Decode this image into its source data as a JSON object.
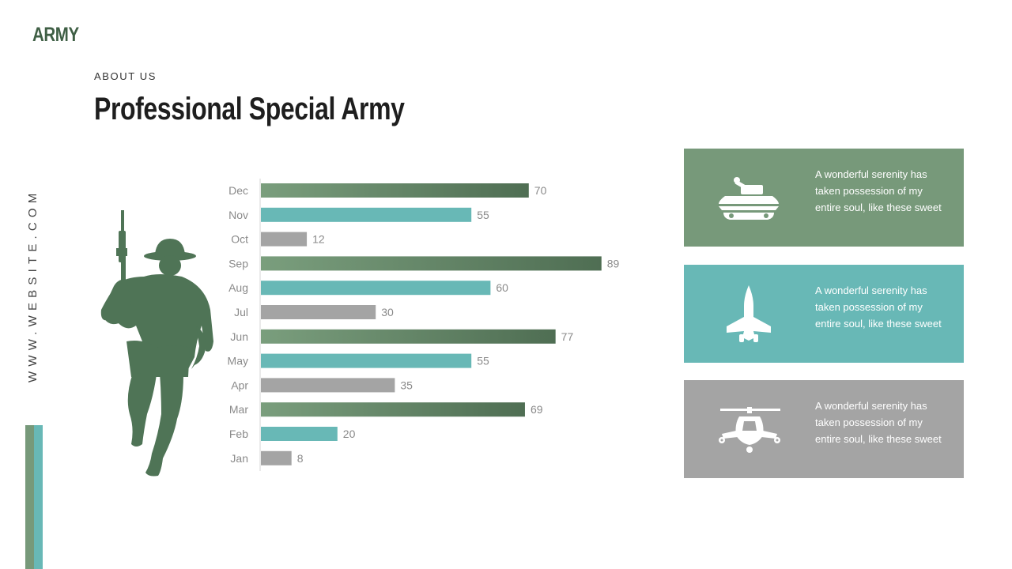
{
  "brand": "ARMY",
  "eyebrow": "ABOUT US",
  "title": "Professional Special Army",
  "vertical_text": "WWW.WEBSITE.COM",
  "colors": {
    "green": "#77997a",
    "green_dark": "#4f6e53",
    "teal": "#68b8b6",
    "gray": "#a4a4a4",
    "soldier": "#4f7456"
  },
  "cards": [
    {
      "icon": "tank-icon",
      "color": "#77997a",
      "text": "A wonderful serenity has taken possession of my entire soul, like these sweet"
    },
    {
      "icon": "fighter-jet-icon",
      "color": "#68b8b6",
      "text": "A wonderful serenity has taken possession of my entire soul, like these sweet"
    },
    {
      "icon": "helicopter-icon",
      "color": "#a4a4a4",
      "text": "A wonderful serenity has taken possession of my entire soul, like these sweet"
    }
  ],
  "chart_data": {
    "type": "bar",
    "orientation": "horizontal",
    "categories": [
      "Dec",
      "Nov",
      "Oct",
      "Sep",
      "Aug",
      "Jul",
      "Jun",
      "May",
      "Apr",
      "Mar",
      "Feb",
      "Jan"
    ],
    "values": [
      70,
      55,
      12,
      89,
      60,
      30,
      77,
      55,
      35,
      69,
      20,
      8
    ],
    "bar_colors": [
      "green",
      "teal",
      "gray",
      "green",
      "teal",
      "gray",
      "green",
      "teal",
      "gray",
      "green",
      "teal",
      "gray"
    ],
    "data_labels": true,
    "grid": false
  }
}
